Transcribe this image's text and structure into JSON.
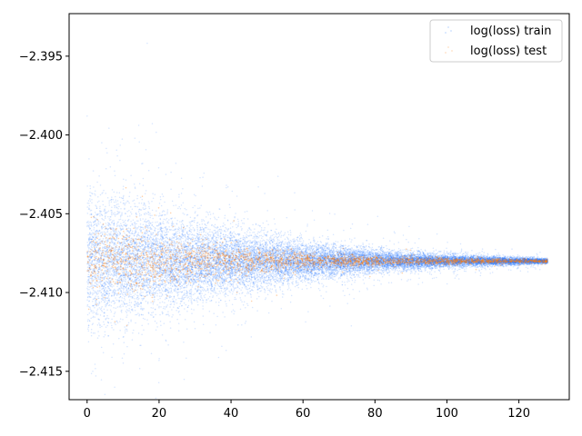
{
  "chart_data": {
    "type": "scatter",
    "title": "",
    "xlabel": "",
    "ylabel": "",
    "xlim": [
      -5,
      134
    ],
    "ylim": [
      -2.4168,
      -2.3923
    ],
    "x_ticks": [
      0,
      20,
      40,
      60,
      80,
      100,
      120
    ],
    "x_tick_labels": [
      "0",
      "20",
      "40",
      "60",
      "80",
      "100",
      "120"
    ],
    "y_ticks": [
      -2.395,
      -2.4,
      -2.405,
      -2.41,
      -2.415
    ],
    "y_tick_labels": [
      "−2.395",
      "−2.400",
      "−2.405",
      "−2.410",
      "−2.415"
    ],
    "grid": false,
    "legend_position": "top-right",
    "x_range": [
      0,
      128
    ],
    "center_value": -2.408,
    "series": [
      {
        "name": "log(loss) train",
        "color": "#1f77ff",
        "spread_envelope": [
          [
            0,
            0.0042
          ],
          [
            20,
            0.003
          ],
          [
            40,
            0.002
          ],
          [
            60,
            0.0012
          ],
          [
            80,
            0.0007
          ],
          [
            100,
            0.0004
          ],
          [
            128,
            0.00015
          ]
        ],
        "approx_points_per_epoch": 160
      },
      {
        "name": "log(loss) test",
        "color": "#ff7f0e",
        "spread_envelope": [
          [
            0,
            0.0022
          ],
          [
            20,
            0.0015
          ],
          [
            40,
            0.0009
          ],
          [
            60,
            0.0005
          ],
          [
            80,
            0.0003
          ],
          [
            100,
            0.0002
          ],
          [
            128,
            0.0001
          ]
        ],
        "approx_points_per_epoch": 20
      }
    ]
  }
}
